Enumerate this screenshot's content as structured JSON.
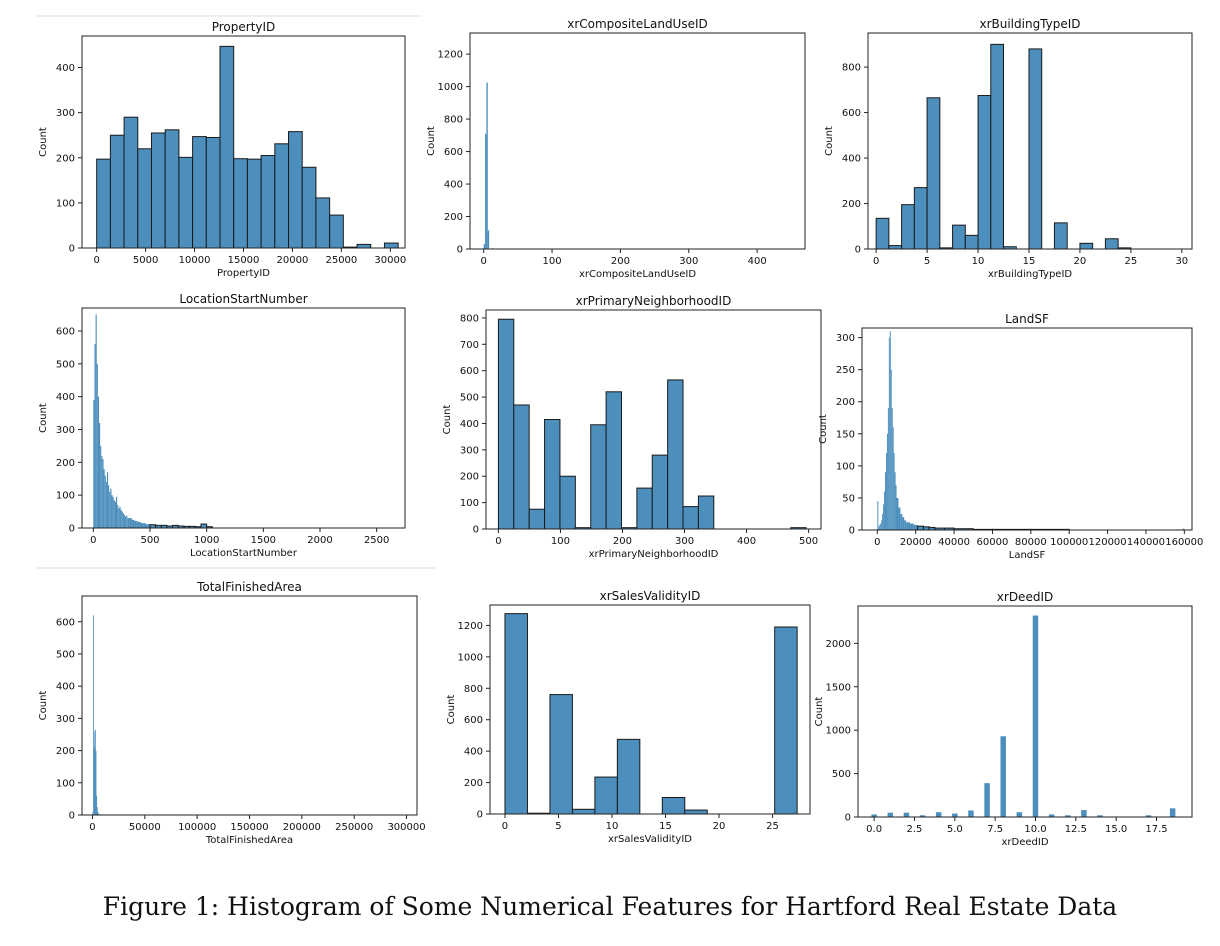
{
  "caption": "Figure 1: Histogram of Some Numerical Features for Hartford Real Estate Data",
  "colors": {
    "bar": "#4c8fbd",
    "edge": "#1a1a1a"
  },
  "chart_data": [
    {
      "type": "bar",
      "title": "PropertyID",
      "xlabel": "PropertyID",
      "ylabel": "Count",
      "xlim": [
        -1500,
        31500
      ],
      "ylim": [
        0,
        470
      ],
      "xticks": [
        0,
        5000,
        10000,
        15000,
        20000,
        25000,
        30000
      ],
      "xtick_labels": [
        "0",
        "5000",
        "10000",
        "15000",
        "20000",
        "25000",
        "30000"
      ],
      "yticks": [
        0,
        100,
        200,
        300,
        400
      ],
      "bin_edges": [
        0,
        1400,
        2800,
        4200,
        5600,
        7000,
        8400,
        9800,
        11200,
        12600,
        14000,
        15400,
        16800,
        18200,
        19600,
        21000,
        22400,
        23800,
        25200,
        26600,
        28000,
        29400,
        30800
      ],
      "values": [
        197,
        250,
        290,
        220,
        255,
        262,
        201,
        247,
        245,
        447,
        198,
        197,
        205,
        231,
        258,
        179,
        111,
        73,
        2,
        8,
        0,
        11
      ]
    },
    {
      "type": "bar",
      "title": "xrCompositeLandUseID",
      "xlabel": "xrCompositeLandUseID",
      "ylabel": "Count",
      "xlim": [
        -20,
        470
      ],
      "ylim": [
        0,
        1330
      ],
      "xticks": [
        0,
        100,
        200,
        300,
        400
      ],
      "xtick_labels": [
        "0",
        "100",
        "200",
        "300",
        "400"
      ],
      "yticks": [
        0,
        200,
        400,
        600,
        800,
        1000,
        1200
      ],
      "bin_edges": [
        0,
        2,
        4,
        6,
        8,
        10,
        12,
        14
      ],
      "values": [
        30,
        710,
        1025,
        115,
        0,
        0,
        5
      ]
    },
    {
      "type": "bar",
      "title": "xrBuildingTypeID",
      "xlabel": "xrBuildingTypeID",
      "ylabel": "Count",
      "xlim": [
        -0.8,
        31
      ],
      "ylim": [
        0,
        950
      ],
      "xticks": [
        0,
        5,
        10,
        15,
        20,
        25,
        30
      ],
      "xtick_labels": [
        "0",
        "5",
        "10",
        "15",
        "20",
        "25",
        "30"
      ],
      "yticks": [
        0,
        200,
        400,
        600,
        800
      ],
      "bin_edges": [
        0,
        1.25,
        2.5,
        3.75,
        5,
        6.25,
        7.5,
        8.75,
        10,
        11.25,
        12.5,
        13.75,
        15,
        16.25,
        17.5,
        18.75,
        20,
        21.25,
        22.5,
        23.75,
        25,
        26.25,
        27.5,
        28.75,
        30
      ],
      "values": [
        135,
        15,
        195,
        270,
        665,
        5,
        105,
        60,
        675,
        900,
        10,
        0,
        880,
        0,
        115,
        0,
        25,
        0,
        45,
        5,
        0,
        0,
        0,
        0
      ]
    },
    {
      "type": "bar",
      "title": "LocationStartNumber",
      "xlabel": "LocationStartNumber",
      "ylabel": "Count",
      "xlim": [
        -100,
        2750
      ],
      "ylim": [
        0,
        670
      ],
      "xticks": [
        0,
        500,
        1000,
        1500,
        2000,
        2500
      ],
      "xtick_labels": [
        "0",
        "500",
        "1000",
        "1500",
        "2000",
        "2500"
      ],
      "yticks": [
        0,
        100,
        200,
        300,
        400,
        500,
        600
      ],
      "bin_edges": [
        0,
        10,
        20,
        30,
        40,
        50,
        60,
        70,
        80,
        90,
        100,
        110,
        120,
        130,
        140,
        150,
        160,
        170,
        180,
        190,
        200,
        210,
        220,
        230,
        240,
        250,
        260,
        270,
        280,
        290,
        300,
        320,
        340,
        360,
        380,
        400,
        420,
        440,
        460,
        480,
        500,
        550,
        600,
        650,
        700,
        750,
        800,
        850,
        900,
        950,
        1000,
        1050
      ],
      "values": [
        390,
        560,
        650,
        500,
        400,
        320,
        250,
        220,
        210,
        180,
        160,
        140,
        170,
        130,
        110,
        120,
        100,
        95,
        85,
        80,
        95,
        70,
        60,
        65,
        55,
        50,
        45,
        40,
        35,
        38,
        30,
        30,
        25,
        22,
        20,
        18,
        15,
        15,
        12,
        12,
        10,
        8,
        8,
        6,
        8,
        6,
        5,
        5,
        4,
        12,
        4
      ]
    },
    {
      "type": "bar",
      "title": "xrPrimaryNeighborhoodID",
      "xlabel": "xrPrimaryNeighborhoodID",
      "ylabel": "Count",
      "xlim": [
        -20,
        520
      ],
      "ylim": [
        0,
        830
      ],
      "xticks": [
        0,
        100,
        200,
        300,
        400,
        500
      ],
      "xtick_labels": [
        "0",
        "100",
        "200",
        "300",
        "400",
        "500"
      ],
      "yticks": [
        0,
        100,
        200,
        300,
        400,
        500,
        600,
        700,
        800
      ],
      "bin_edges": [
        0,
        24.8,
        49.6,
        74.4,
        99.2,
        124,
        148.8,
        173.6,
        198.4,
        223.2,
        248,
        272.8,
        297.6,
        322.4,
        347.2,
        372,
        396.8,
        421.6,
        446.4,
        471.2,
        496
      ],
      "values": [
        795,
        470,
        75,
        415,
        200,
        5,
        395,
        520,
        5,
        155,
        280,
        565,
        85,
        125,
        0,
        0,
        0,
        0,
        0,
        5
      ]
    },
    {
      "type": "bar",
      "title": "LandSF",
      "xlabel": "LandSF",
      "ylabel": "Count",
      "xlim": [
        -8000,
        164000
      ],
      "ylim": [
        0,
        315
      ],
      "xticks": [
        0,
        20000,
        40000,
        60000,
        80000,
        100000,
        120000,
        140000,
        160000
      ],
      "xtick_labels": [
        "0",
        "20000",
        "40000",
        "60000",
        "80000",
        "100000",
        "120000",
        "140000",
        "160000"
      ],
      "yticks": [
        0,
        50,
        100,
        150,
        200,
        250,
        300
      ],
      "bin_edges": [
        0,
        500,
        1000,
        1500,
        2000,
        2500,
        3000,
        3500,
        4000,
        4500,
        5000,
        5500,
        6000,
        6500,
        7000,
        7500,
        8000,
        8500,
        9000,
        9500,
        10000,
        11000,
        12000,
        13000,
        14000,
        15000,
        17000,
        19000,
        21000,
        24000,
        27000,
        30000,
        35000,
        40000,
        50000,
        60000,
        80000,
        100000,
        159000,
        160000
      ],
      "values": [
        45,
        5,
        8,
        10,
        15,
        25,
        40,
        60,
        90,
        120,
        150,
        190,
        300,
        310,
        250,
        190,
        160,
        120,
        90,
        70,
        50,
        35,
        25,
        20,
        15,
        12,
        10,
        8,
        6,
        5,
        4,
        3,
        3,
        2,
        1,
        1,
        1,
        0,
        2
      ]
    },
    {
      "type": "bar",
      "title": "TotalFinishedArea",
      "xlabel": "TotalFinishedArea",
      "ylabel": "Count",
      "xlim": [
        -10000,
        310000
      ],
      "ylim": [
        0,
        680
      ],
      "xticks": [
        0,
        50000,
        100000,
        150000,
        200000,
        250000,
        300000
      ],
      "xtick_labels": [
        "0",
        "50000",
        "100000",
        "150000",
        "200000",
        "250000",
        "300000"
      ],
      "yticks": [
        0,
        100,
        200,
        300,
        400,
        500,
        600
      ],
      "bin_edges": [
        0,
        600,
        1200,
        1800,
        2400,
        3000,
        3600,
        4200,
        4800,
        5400,
        6000,
        6600
      ],
      "values": [
        10,
        620,
        210,
        260,
        265,
        200,
        60,
        25,
        10,
        5,
        3
      ]
    },
    {
      "type": "bar",
      "title": "xrSalesValidityID",
      "xlabel": "xrSalesValidityID",
      "ylabel": "Count",
      "xlim": [
        -1.4,
        28.5
      ],
      "ylim": [
        0,
        1330
      ],
      "xticks": [
        0,
        5,
        10,
        15,
        20,
        25
      ],
      "xtick_labels": [
        "0",
        "5",
        "10",
        "15",
        "20",
        "25"
      ],
      "yticks": [
        0,
        200,
        400,
        600,
        800,
        1000,
        1200
      ],
      "bin_edges": [
        0,
        2.1,
        4.2,
        6.3,
        8.4,
        10.5,
        12.6,
        14.7,
        16.8,
        18.9,
        21,
        23.1,
        25.2,
        27.3
      ],
      "values": [
        1275,
        5,
        760,
        30,
        235,
        475,
        0,
        105,
        25,
        0,
        0,
        0,
        1190
      ]
    },
    {
      "type": "bar",
      "title": "xrDeedID",
      "xlabel": "xrDeedID",
      "ylabel": "Count",
      "xlim": [
        -1,
        19.7
      ],
      "ylim": [
        0,
        2430
      ],
      "xticks": [
        0,
        2.5,
        5,
        7.5,
        10,
        12.5,
        15,
        17.5
      ],
      "xtick_labels": [
        "0.0",
        "2.5",
        "5.0",
        "7.5",
        "10.0",
        "12.5",
        "15.0",
        "17.5"
      ],
      "yticks": [
        0,
        500,
        1000,
        1500,
        2000
      ],
      "bar_width": 0.34,
      "x": [
        0,
        1,
        2,
        3,
        4,
        5,
        6,
        7,
        8,
        9,
        10,
        11,
        12,
        13,
        14,
        17,
        18.5
      ],
      "values": [
        30,
        50,
        50,
        20,
        55,
        40,
        75,
        390,
        930,
        55,
        2320,
        30,
        20,
        80,
        20,
        20,
        100
      ]
    }
  ]
}
